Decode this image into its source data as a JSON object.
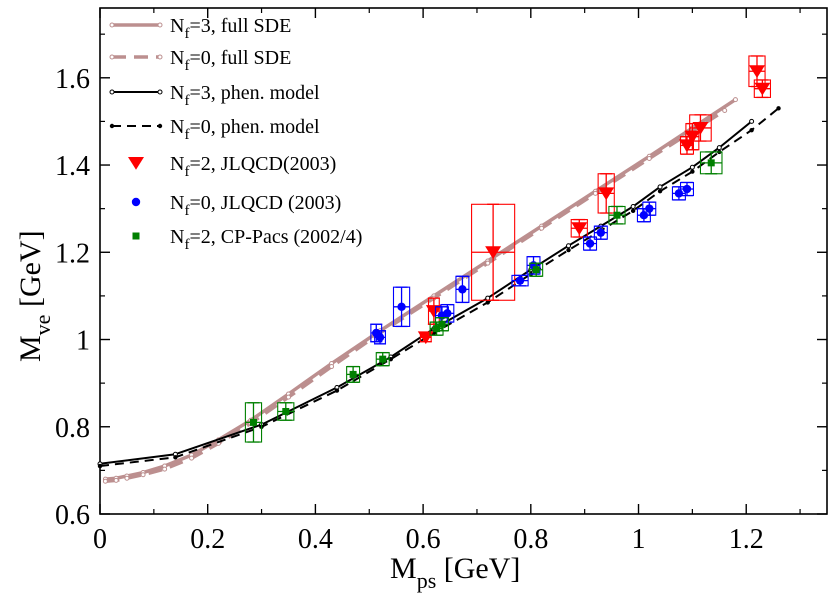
{
  "chart_data": {
    "type": "scatter",
    "xlim": [
      0,
      1.35
    ],
    "ylim": [
      0.6,
      1.76
    ],
    "x_ticks": [
      "0",
      "0.2",
      "0.4",
      "0.6",
      "0.8",
      "1",
      "1.2"
    ],
    "y_ticks": [
      "0.6",
      "0.8",
      "1",
      "1.2",
      "1.4",
      "1.6"
    ],
    "x_tick_values": [
      0,
      0.2,
      0.4,
      0.6,
      0.8,
      1.0,
      1.2
    ],
    "y_tick_values": [
      0.6,
      0.8,
      1.0,
      1.2,
      1.4,
      1.6
    ],
    "xlabel": {
      "main": "M",
      "sub": "ps",
      "rest": " [GeV]"
    },
    "ylabel": {
      "main": "M",
      "sub": "ve",
      "rest": " [GeV]"
    },
    "grid": false,
    "legend_position": "top-left",
    "legend": [
      {
        "pre": "N",
        "sub": "f",
        "post": "=3, full SDE"
      },
      {
        "pre": "N",
        "sub": "f",
        "post": "=0, full SDE"
      },
      {
        "pre": "N",
        "sub": "f",
        "post": "=3, phen. model"
      },
      {
        "pre": "N",
        "sub": "f",
        "post": "=0, phen. model"
      },
      {
        "pre": "N",
        "sub": "f",
        "post": "=2, JLQCD(2003)"
      },
      {
        "pre": "N",
        "sub": "f",
        "post": "=0, JLQCD (2003)"
      },
      {
        "pre": "N",
        "sub": "f",
        "post": "=2, CP-Pacs (2002/4)"
      }
    ],
    "colors": {
      "sde": "#bc8f8f",
      "phen": "#000000",
      "jlqcd2": "#ff0000",
      "jlqcd0": "#0000ff",
      "cppacs": "#008000"
    },
    "series": [
      {
        "kind": "line",
        "style": "solid-thick",
        "x": [
          0.01,
          0.03,
          0.05,
          0.08,
          0.12,
          0.17,
          0.22,
          0.28,
          0.35,
          0.43,
          0.52,
          0.62,
          0.72,
          0.82,
          0.92,
          1.02,
          1.1,
          1.18
        ],
        "y": [
          0.68,
          0.682,
          0.687,
          0.695,
          0.71,
          0.735,
          0.77,
          0.815,
          0.875,
          0.945,
          1.02,
          1.1,
          1.18,
          1.26,
          1.34,
          1.42,
          1.485,
          1.55
        ]
      },
      {
        "kind": "line",
        "style": "dashed-thick",
        "x": [
          0.01,
          0.03,
          0.05,
          0.08,
          0.12,
          0.17,
          0.22,
          0.28,
          0.35,
          0.43,
          0.52,
          0.62,
          0.72,
          0.82,
          0.92,
          1.02,
          1.09,
          1.16
        ],
        "y": [
          0.675,
          0.677,
          0.682,
          0.69,
          0.703,
          0.728,
          0.762,
          0.808,
          0.868,
          0.938,
          1.015,
          1.095,
          1.175,
          1.255,
          1.335,
          1.415,
          1.47,
          1.525
        ]
      },
      {
        "kind": "line",
        "style": "solid-thin",
        "x": [
          0.0,
          0.14,
          0.3,
          0.44,
          0.54,
          0.62,
          0.72,
          0.8,
          0.87,
          0.93,
          0.99,
          1.04,
          1.1,
          1.15,
          1.21
        ],
        "y": [
          0.715,
          0.737,
          0.805,
          0.89,
          0.96,
          1.025,
          1.095,
          1.16,
          1.215,
          1.26,
          1.305,
          1.35,
          1.395,
          1.44,
          1.5
        ]
      },
      {
        "kind": "line",
        "style": "dashed-thin",
        "x": [
          0.0,
          0.14,
          0.3,
          0.44,
          0.54,
          0.62,
          0.72,
          0.8,
          0.87,
          0.93,
          0.99,
          1.04,
          1.1,
          1.15,
          1.21,
          1.26
        ],
        "y": [
          0.71,
          0.73,
          0.8,
          0.883,
          0.955,
          1.015,
          1.085,
          1.15,
          1.205,
          1.25,
          1.295,
          1.34,
          1.385,
          1.43,
          1.48,
          1.53
        ]
      },
      {
        "kind": "points",
        "marker": "triangle-down",
        "points": [
          {
            "x": 0.605,
            "y": 1.005,
            "xerr": 0.01,
            "yerr": 0.01
          },
          {
            "x": 0.62,
            "y": 1.065,
            "xerr": 0.01,
            "yerr": 0.03
          },
          {
            "x": 0.73,
            "y": 1.2,
            "xerr": 0.04,
            "yerr": 0.11
          },
          {
            "x": 0.89,
            "y": 1.255,
            "xerr": 0.015,
            "yerr": 0.02
          },
          {
            "x": 0.94,
            "y": 1.335,
            "xerr": 0.015,
            "yerr": 0.045
          },
          {
            "x": 1.09,
            "y": 1.445,
            "xerr": 0.012,
            "yerr": 0.02
          },
          {
            "x": 1.1,
            "y": 1.465,
            "xerr": 0.012,
            "yerr": 0.03
          },
          {
            "x": 1.115,
            "y": 1.485,
            "xerr": 0.02,
            "yerr": 0.03
          },
          {
            "x": 1.22,
            "y": 1.615,
            "xerr": 0.015,
            "yerr": 0.035
          },
          {
            "x": 1.23,
            "y": 1.575,
            "xerr": 0.015,
            "yerr": 0.02
          }
        ]
      },
      {
        "kind": "points",
        "marker": "circle",
        "points": [
          {
            "x": 0.513,
            "y": 1.015,
            "xerr": 0.01,
            "yerr": 0.02
          },
          {
            "x": 0.52,
            "y": 1.005,
            "xerr": 0.01,
            "yerr": 0.015
          },
          {
            "x": 0.56,
            "y": 1.075,
            "xerr": 0.015,
            "yerr": 0.045
          },
          {
            "x": 0.635,
            "y": 1.055,
            "xerr": 0.012,
            "yerr": 0.02
          },
          {
            "x": 0.645,
            "y": 1.06,
            "xerr": 0.012,
            "yerr": 0.02
          },
          {
            "x": 0.673,
            "y": 1.115,
            "xerr": 0.012,
            "yerr": 0.03
          },
          {
            "x": 0.78,
            "y": 1.135,
            "xerr": 0.015,
            "yerr": 0.012
          },
          {
            "x": 0.805,
            "y": 1.17,
            "xerr": 0.012,
            "yerr": 0.02
          },
          {
            "x": 0.91,
            "y": 1.22,
            "xerr": 0.012,
            "yerr": 0.015
          },
          {
            "x": 0.93,
            "y": 1.245,
            "xerr": 0.012,
            "yerr": 0.015
          },
          {
            "x": 1.01,
            "y": 1.285,
            "xerr": 0.012,
            "yerr": 0.015
          },
          {
            "x": 1.02,
            "y": 1.3,
            "xerr": 0.012,
            "yerr": 0.015
          },
          {
            "x": 1.075,
            "y": 1.335,
            "xerr": 0.012,
            "yerr": 0.015
          },
          {
            "x": 1.09,
            "y": 1.345,
            "xerr": 0.012,
            "yerr": 0.015
          }
        ]
      },
      {
        "kind": "points",
        "marker": "square",
        "points": [
          {
            "x": 0.285,
            "y": 0.81,
            "xerr": 0.015,
            "yerr": 0.045
          },
          {
            "x": 0.345,
            "y": 0.835,
            "xerr": 0.015,
            "yerr": 0.02
          },
          {
            "x": 0.47,
            "y": 0.92,
            "xerr": 0.012,
            "yerr": 0.018
          },
          {
            "x": 0.525,
            "y": 0.955,
            "xerr": 0.012,
            "yerr": 0.015
          },
          {
            "x": 0.625,
            "y": 1.025,
            "xerr": 0.012,
            "yerr": 0.015
          },
          {
            "x": 0.635,
            "y": 1.035,
            "xerr": 0.012,
            "yerr": 0.015
          },
          {
            "x": 0.81,
            "y": 1.16,
            "xerr": 0.012,
            "yerr": 0.015
          },
          {
            "x": 0.96,
            "y": 1.285,
            "xerr": 0.015,
            "yerr": 0.02
          },
          {
            "x": 1.135,
            "y": 1.405,
            "xerr": 0.02,
            "yerr": 0.025
          }
        ]
      }
    ]
  }
}
